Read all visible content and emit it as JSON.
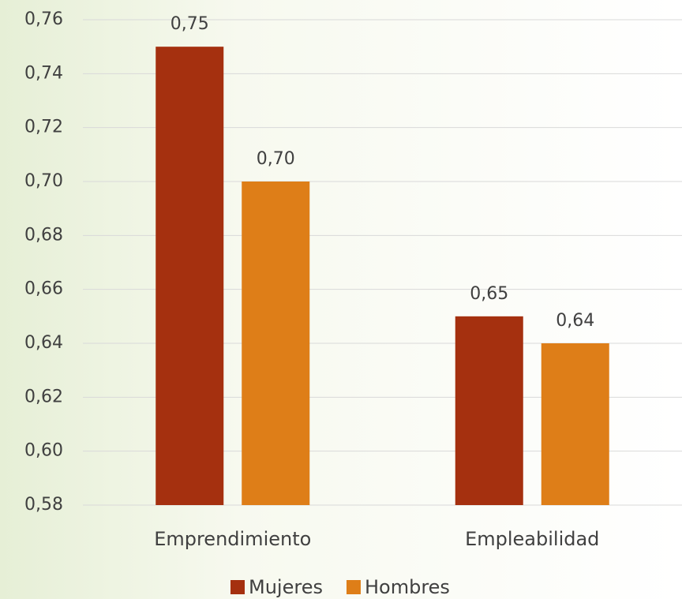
{
  "chart_data": {
    "type": "bar",
    "categories": [
      "Emprendimiento",
      "Empleabilidad"
    ],
    "series": [
      {
        "name": "Mujeres",
        "color": "#a5300f",
        "values": [
          0.75,
          0.65
        ],
        "value_labels": [
          "0,75",
          "0,65"
        ]
      },
      {
        "name": "Hombres",
        "color": "#de7e18",
        "values": [
          0.7,
          0.64
        ],
        "value_labels": [
          "0,70",
          "0,64"
        ]
      }
    ],
    "ylim": [
      0.58,
      0.76
    ],
    "yticks": [
      {
        "value": 0.58,
        "label": "0,58"
      },
      {
        "value": 0.6,
        "label": "0,60"
      },
      {
        "value": 0.62,
        "label": "0,62"
      },
      {
        "value": 0.64,
        "label": "0,64"
      },
      {
        "value": 0.66,
        "label": "0,66"
      },
      {
        "value": 0.68,
        "label": "0,68"
      },
      {
        "value": 0.7,
        "label": "0,70"
      },
      {
        "value": 0.72,
        "label": "0,72"
      },
      {
        "value": 0.74,
        "label": "0,74"
      },
      {
        "value": 0.76,
        "label": "0,76"
      }
    ],
    "grid": true,
    "legend": "bottom"
  }
}
